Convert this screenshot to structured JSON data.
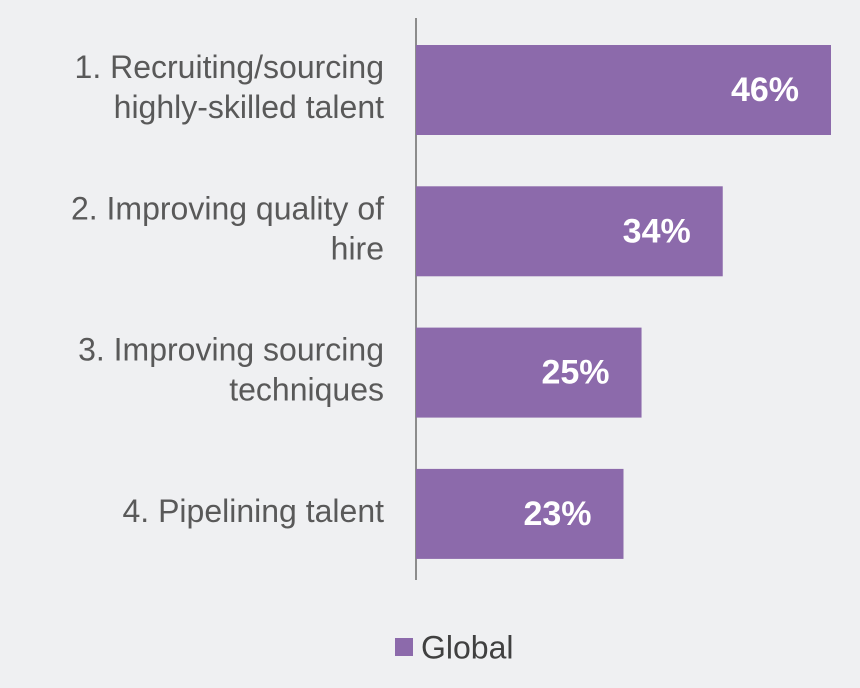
{
  "chart_data": {
    "type": "hbar",
    "categories": [
      [
        "1. Recruiting/sourcing",
        "highly-skilled talent"
      ],
      [
        "2. Improving quality of",
        "hire"
      ],
      [
        "3. Improving sourcing",
        "techniques"
      ],
      [
        "4. Pipelining talent"
      ]
    ],
    "series": [
      {
        "name": "Global",
        "color": "#8c6aab",
        "values": [
          46,
          34,
          25,
          23
        ],
        "value_labels": [
          "46%",
          "34%",
          "25%",
          "23%"
        ]
      }
    ],
    "xlim": [
      0,
      46
    ],
    "legend": "bottom"
  }
}
